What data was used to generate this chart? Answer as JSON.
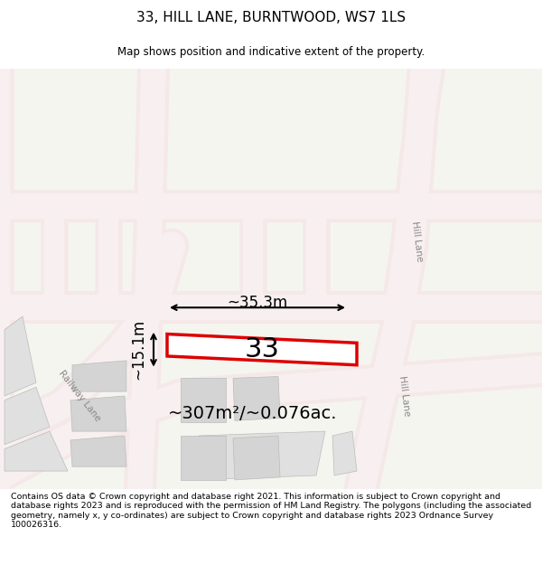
{
  "title": "33, HILL LANE, BURNTWOOD, WS7 1LS",
  "subtitle": "Map shows position and indicative extent of the property.",
  "footer": "Contains OS data © Crown copyright and database right 2021. This information is subject to Crown copyright and database rights 2023 and is reproduced with the permission of HM Land Registry. The polygons (including the associated geometry, namely x, y co-ordinates) are subject to Crown copyright and database rights 2023 Ordnance Survey 100026316.",
  "area_label": "~307m²/~0.076ac.",
  "width_label": "~35.3m",
  "height_label": "~15.1m",
  "plot_number": "33",
  "map_bg": "#f5f5f0",
  "road_color_light": "#f5c8c8",
  "road_color_mid": "#e8a0a0",
  "building_fill": "#d8d8d8",
  "building_fill2": "#e8e8e8",
  "highlight_fill": "#ffffff",
  "highlight_border": "#ff0000",
  "road_line_color": "#e08080",
  "street_label_color": "#888888",
  "dim_color": "#000000",
  "title_fontsize": 11,
  "subtitle_fontsize": 9,
  "footer_fontsize": 7.2,
  "label_fontsize": 13,
  "plot_num_fontsize": 22,
  "area_fontsize": 14
}
